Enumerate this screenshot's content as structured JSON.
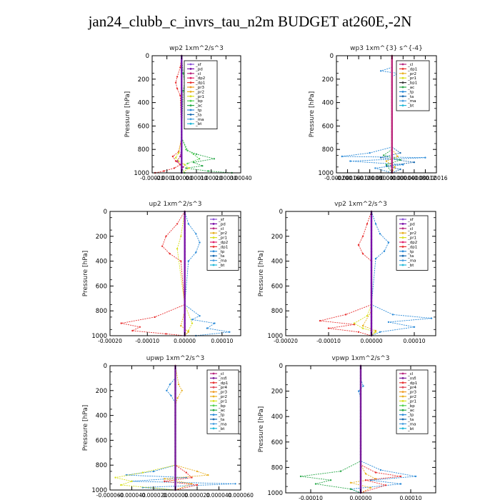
{
  "figure_title": "jan24_clubb_c_invrs_tau_n2m  BUDGET at260E,-2N",
  "colors": {
    "sf": "#8a4fd6",
    "pd": "#7a0ea8",
    "cl": "#b8257e",
    "dp2": "#e0206a",
    "dp1": "#e83030",
    "pr3": "#f09a20",
    "pr2": "#e8b020",
    "pr1": "#d8e020",
    "bp": "#50d050",
    "ac": "#2aa84a",
    "tp": "#2a8ad8",
    "ta": "#1a6ab0",
    "ma": "#4aa0e0",
    "bt": "#20b8d8",
    "mfl": "#7a1a9a",
    "pr4": "#e04a5a"
  },
  "chart_data": [
    {
      "type": "line",
      "title": "wp2   1xm^2/s^3",
      "ylabel": "Pressure [hPa]",
      "xlim": [
        -0.0002,
        0.0004
      ],
      "ylim": [
        1000,
        0
      ],
      "xticks": [
        -0.0002,
        -0.0001,
        0.0,
        0.0001,
        0.0002,
        0.0003,
        0.0004
      ],
      "xtick_labels": [
        "-0.00020",
        "-0.00010",
        "0.00000",
        "0.00010",
        "0.00020",
        "0.00030",
        "0.00040"
      ],
      "yticks": [
        0,
        200,
        400,
        600,
        800,
        1000
      ],
      "legend": [
        "_sf",
        "_pd",
        "_cl",
        "_dp2",
        "_dp1",
        "_pr3",
        "_pr2",
        "_pr1",
        "_bp",
        "_ac",
        "_tp",
        "_ta",
        "_ma",
        "_bt"
      ],
      "series": [
        {
          "name": "_dp1",
          "key": "dp1",
          "x": [
            0,
            -1e-05,
            -3e-05,
            -4e-05,
            -3e-05,
            -1e-05,
            0,
            -2e-05,
            -6e-05,
            -4e-05,
            -1e-05,
            -5e-05,
            -0.00012,
            -0.00018
          ],
          "y": [
            0,
            100,
            180,
            230,
            280,
            340,
            700,
            820,
            860,
            900,
            930,
            960,
            985,
            1000
          ]
        },
        {
          "name": "_ac",
          "key": "ac",
          "x": [
            0,
            1e-05,
            2e-05,
            1e-05,
            0,
            4e-05,
            0.0001,
            0.00022,
            8e-05,
            0.00014,
            3e-05,
            0.00018,
            0.00034
          ],
          "y": [
            0,
            150,
            230,
            300,
            700,
            810,
            840,
            880,
            910,
            940,
            960,
            985,
            1000
          ]
        },
        {
          "name": "_bp",
          "key": "bp",
          "x": [
            0,
            0,
            3e-05,
            8e-05,
            0.00012,
            4e-05,
            0,
            2e-05
          ],
          "y": [
            0,
            700,
            800,
            840,
            880,
            920,
            960,
            1000
          ]
        },
        {
          "name": "_pr1",
          "key": "pr1",
          "x": [
            0,
            0,
            -2e-05,
            -4e-05,
            -2e-05,
            2e-05,
            5e-05,
            0
          ],
          "y": [
            0,
            700,
            830,
            870,
            900,
            930,
            960,
            1000
          ]
        },
        {
          "name": "_cl",
          "key": "cl",
          "x": [
            0,
            0,
            -1e-05,
            -3e-05,
            1e-05,
            0
          ],
          "y": [
            0,
            780,
            860,
            900,
            950,
            1000
          ]
        },
        {
          "name": "_bt",
          "key": "bt",
          "x": [
            0,
            0
          ],
          "y": [
            0,
            1000
          ]
        },
        {
          "name": "_pd",
          "key": "pd",
          "x": [
            0,
            0
          ],
          "y": [
            0,
            1000
          ]
        }
      ]
    },
    {
      "type": "line",
      "title": "wp3   1xm^{3} s^{-4}",
      "ylabel": "Pressure [hPa]",
      "xlim": [
        -0.0002,
        0.00016
      ],
      "ylim": [
        1000,
        0
      ],
      "xticks": [
        -0.0002,
        -0.00016,
        -0.00012,
        -8e-05,
        -4e-05,
        0.0,
        4e-05,
        8e-05,
        0.00012,
        0.00016
      ],
      "xtick_labels": [
        "-0.00020",
        "-0.00016",
        "-0.00012",
        "-0.00008",
        "-0.00004",
        "0.00000",
        "0.00004",
        "0.00008",
        "0.00012",
        "0.00016"
      ],
      "yticks": [
        0,
        200,
        400,
        600,
        800,
        1000
      ],
      "legend": [
        "_cl",
        "_dp1",
        "_pr2",
        "_pr1",
        "_bp1",
        "_ac",
        "_tp",
        "_ta",
        "_ma",
        "_bt"
      ],
      "series": [
        {
          "name": "_tp",
          "key": "tp",
          "x": [
            0,
            0,
            -4e-05,
            2e-05,
            0,
            0,
            -8e-05,
            -0.00018,
            0.00012,
            -0.00015,
            4e-05,
            -6e-05,
            0
          ],
          "y": [
            0,
            100,
            130,
            150,
            180,
            780,
            830,
            860,
            870,
            900,
            930,
            960,
            1000
          ]
        },
        {
          "name": "_ta",
          "key": "ta",
          "x": [
            0,
            0,
            3e-05,
            -4e-05,
            8e-05,
            -2e-05,
            3e-05,
            0
          ],
          "y": [
            0,
            780,
            830,
            870,
            910,
            940,
            970,
            1000
          ]
        },
        {
          "name": "_ac",
          "key": "ac",
          "x": [
            0,
            0,
            -3e-05,
            3e-05,
            -2e-05,
            0
          ],
          "y": [
            0,
            800,
            850,
            890,
            930,
            1000
          ]
        },
        {
          "name": "_pr2",
          "key": "pr2",
          "x": [
            0,
            0,
            2e-05,
            -2e-05,
            1e-05,
            0
          ],
          "y": [
            0,
            800,
            860,
            900,
            950,
            1000
          ]
        },
        {
          "name": "_dp1",
          "key": "dp1",
          "x": [
            0,
            0
          ],
          "y": [
            0,
            1000
          ]
        },
        {
          "name": "_cl",
          "key": "cl",
          "x": [
            0,
            0
          ],
          "y": [
            0,
            1000
          ]
        }
      ]
    },
    {
      "type": "line",
      "title": "up2   1xm^2/s^3",
      "ylabel": "Pressure [hPa]",
      "xlim": [
        -0.0002,
        0.00015
      ],
      "ylim": [
        1000,
        0
      ],
      "xticks": [
        -0.0002,
        -0.0001,
        0.0,
        0.0001
      ],
      "xtick_labels": [
        "-0.00020",
        "-0.00010",
        "0.00000",
        "0.00010"
      ],
      "yticks": [
        0,
        200,
        400,
        600,
        800,
        1000
      ],
      "legend": [
        "_sf",
        "_pd",
        "_cl",
        "_pr2",
        "_pr1",
        "_dp2",
        "_dp1",
        "_tp",
        "_ta",
        "_ma",
        "_bt"
      ],
      "series": [
        {
          "name": "_dp1",
          "key": "dp1",
          "x": [
            0,
            -2e-05,
            -5e-05,
            -6e-05,
            -4e-05,
            -1e-05,
            0,
            -8e-05,
            -0.00017,
            -0.00012,
            -0.00014,
            -5e-05,
            0
          ],
          "y": [
            0,
            100,
            200,
            280,
            340,
            400,
            750,
            850,
            900,
            930,
            960,
            985,
            1000
          ]
        },
        {
          "name": "_tp",
          "key": "tp",
          "x": [
            0,
            1e-05,
            3e-05,
            4e-05,
            3e-05,
            1e-05,
            0,
            4e-05,
            2e-05,
            8e-05,
            6e-05,
            0.00012,
            3e-05
          ],
          "y": [
            0,
            100,
            180,
            250,
            330,
            400,
            750,
            840,
            870,
            900,
            940,
            970,
            1000
          ]
        },
        {
          "name": "_pr1",
          "key": "pr1",
          "x": [
            0,
            -1e-05,
            -2e-05,
            0,
            2e-05,
            1e-05,
            0
          ],
          "y": [
            0,
            200,
            300,
            750,
            900,
            960,
            1000
          ]
        },
        {
          "name": "_pr2",
          "key": "pr2",
          "x": [
            0,
            0,
            -1e-05,
            1e-05,
            0
          ],
          "y": [
            0,
            800,
            920,
            970,
            1000
          ]
        },
        {
          "name": "_bt",
          "key": "bt",
          "x": [
            0,
            0
          ],
          "y": [
            0,
            1000
          ]
        },
        {
          "name": "_cl",
          "key": "cl",
          "x": [
            0,
            0
          ],
          "y": [
            0,
            1000
          ]
        },
        {
          "name": "_pd",
          "key": "pd",
          "x": [
            0,
            0
          ],
          "y": [
            0,
            1000
          ]
        }
      ]
    },
    {
      "type": "line",
      "title": "vp2   1xm^2/s^3",
      "ylabel": "Pressure [hPa]",
      "xlim": [
        -0.0002,
        0.00015
      ],
      "ylim": [
        1000,
        0
      ],
      "xticks": [
        -0.0002,
        -0.0001,
        0.0,
        0.0001
      ],
      "xtick_labels": [
        "-0.00020",
        "-0.00010",
        "0.00000",
        "0.00010"
      ],
      "yticks": [
        0,
        200,
        400,
        600,
        800,
        1000
      ],
      "legend": [
        "_sf",
        "_pd",
        "_cl",
        "_pr2",
        "_pr1",
        "_dp2",
        "_dp1",
        "_tp",
        "_ta",
        "_ma",
        "_bt"
      ],
      "series": [
        {
          "name": "_dp1",
          "key": "dp1",
          "x": [
            0,
            -1e-05,
            -2e-05,
            -3e-05,
            -2e-05,
            0,
            0,
            -6e-05,
            -0.00012,
            -4e-05,
            -0.0001,
            -3e-05,
            0
          ],
          "y": [
            0,
            100,
            200,
            270,
            340,
            400,
            750,
            830,
            880,
            910,
            940,
            970,
            1000
          ]
        },
        {
          "name": "_tp",
          "key": "tp",
          "x": [
            0,
            1e-05,
            2e-05,
            4e-05,
            3e-05,
            1e-05,
            0,
            5e-05,
            0.00014,
            4e-05,
            0.0001,
            2e-05,
            0
          ],
          "y": [
            0,
            100,
            180,
            250,
            320,
            380,
            750,
            830,
            860,
            890,
            930,
            970,
            1000
          ]
        },
        {
          "name": "_pr1",
          "key": "pr1",
          "x": [
            0,
            0,
            -1e-05,
            -4e-05,
            -2e-05,
            1e-05,
            0
          ],
          "y": [
            0,
            750,
            840,
            900,
            940,
            970,
            1000
          ]
        },
        {
          "name": "_pr2",
          "key": "pr2",
          "x": [
            0,
            0,
            -2e-05,
            1e-05,
            0
          ],
          "y": [
            0,
            800,
            920,
            960,
            1000
          ]
        },
        {
          "name": "_bt",
          "key": "bt",
          "x": [
            0,
            0
          ],
          "y": [
            0,
            1000
          ]
        },
        {
          "name": "_cl",
          "key": "cl",
          "x": [
            0,
            0
          ],
          "y": [
            0,
            1000
          ]
        },
        {
          "name": "_pd",
          "key": "pd",
          "x": [
            0,
            0
          ],
          "y": [
            0,
            1000
          ]
        }
      ]
    },
    {
      "type": "line",
      "title": "upwp   1xm^2/s^3",
      "ylabel": "Pressure [hPa]",
      "xlim": [
        -6e-05,
        6e-05
      ],
      "ylim": [
        1000,
        0
      ],
      "xticks": [
        -6e-05,
        -4e-05,
        -2e-05,
        0.0,
        2e-05,
        4e-05,
        6e-05
      ],
      "xtick_labels": [
        "-0.000060",
        "-0.000040",
        "-0.000020",
        "0.000000",
        "0.000020",
        "0.000040",
        "0.000060"
      ],
      "yticks": [
        0,
        200,
        400,
        600,
        800,
        1000
      ],
      "legend": [
        "_cl",
        "_mfl",
        "_dp1",
        "_pr4",
        "_pr3",
        "_pr2",
        "_pr1",
        "_bp",
        "_ac",
        "_tp",
        "_ta",
        "_ma",
        "_bt"
      ],
      "series": [
        {
          "name": "_tp",
          "key": "tp",
          "x": [
            0,
            0,
            -5e-06,
            -8e-06,
            -4e-06,
            0,
            0,
            -2e-05,
            -4.5e-05,
            1e-05,
            -4e-05,
            5.5e-05,
            -3e-05,
            0
          ],
          "y": [
            0,
            100,
            150,
            200,
            240,
            300,
            800,
            850,
            880,
            900,
            930,
            950,
            980,
            1000
          ]
        },
        {
          "name": "_pr2",
          "key": "pr2",
          "x": [
            0,
            3e-06,
            6e-06,
            2e-06,
            0,
            0,
            2e-05,
            3e-05,
            -1e-05,
            1.5e-05,
            0
          ],
          "y": [
            0,
            150,
            200,
            260,
            320,
            800,
            850,
            880,
            910,
            950,
            1000
          ]
        },
        {
          "name": "_pr1",
          "key": "pr1",
          "x": [
            0,
            0,
            -3e-05,
            -5.5e-05,
            -4e-05,
            -5e-05,
            0
          ],
          "y": [
            0,
            800,
            860,
            900,
            930,
            960,
            1000
          ]
        },
        {
          "name": "_dp1",
          "key": "dp1",
          "x": [
            0,
            0,
            1e-05,
            1.5e-05,
            -1e-05,
            2e-05,
            0
          ],
          "y": [
            0,
            800,
            860,
            900,
            930,
            960,
            1000
          ]
        },
        {
          "name": "_bt",
          "key": "bt",
          "x": [
            0,
            0
          ],
          "y": [
            0,
            1000
          ]
        },
        {
          "name": "_cl",
          "key": "cl",
          "x": [
            0,
            0
          ],
          "y": [
            0,
            1000
          ]
        },
        {
          "name": "_mfl",
          "key": "mfl",
          "x": [
            0,
            0
          ],
          "y": [
            0,
            1000
          ]
        }
      ]
    },
    {
      "type": "line",
      "title": "vpwp   1xm^2/s^3",
      "ylabel": "Pressure [hPa]",
      "xlim": [
        -0.00015,
        0.00015
      ],
      "ylim": [
        1000,
        0
      ],
      "xticks": [
        -0.0001,
        0.0,
        0.0001
      ],
      "xtick_labels": [
        "-0.00010",
        "0.00000",
        "0.00010"
      ],
      "yticks": [
        0,
        200,
        400,
        600,
        800,
        1000
      ],
      "legend": [
        "_cl",
        "_mfl",
        "_dp1",
        "_pr4",
        "_pr3",
        "_pr2",
        "_pr1",
        "_bp",
        "_ac",
        "_tp",
        "_ta",
        "_ma",
        "_bt"
      ],
      "series": [
        {
          "name": "_tp",
          "key": "tp",
          "x": [
            0,
            0,
            5e-06,
            -4e-06,
            0,
            0,
            4e-05,
            0.00011,
            2e-05,
            8e-05,
            -2e-05,
            0
          ],
          "y": [
            0,
            100,
            160,
            200,
            260,
            750,
            820,
            870,
            900,
            930,
            970,
            1000
          ]
        },
        {
          "name": "_ac",
          "key": "ac",
          "x": [
            0,
            0,
            -4e-05,
            -0.00012,
            -6e-05,
            -9e-05,
            -2e-05,
            0
          ],
          "y": [
            0,
            750,
            830,
            870,
            900,
            930,
            970,
            1000
          ]
        },
        {
          "name": "_pr2",
          "key": "pr2",
          "x": [
            0,
            0,
            1e-05,
            3e-05,
            -2e-05,
            2e-05,
            0
          ],
          "y": [
            0,
            780,
            850,
            890,
            920,
            960,
            1000
          ]
        },
        {
          "name": "_dp1",
          "key": "dp1",
          "x": [
            0,
            0,
            3e-05,
            8e-05,
            1e-05,
            5e-05,
            0
          ],
          "y": [
            0,
            780,
            840,
            870,
            900,
            940,
            1000
          ]
        },
        {
          "name": "_bt",
          "key": "bt",
          "x": [
            0,
            0
          ],
          "y": [
            0,
            1000
          ]
        },
        {
          "name": "_cl",
          "key": "cl",
          "x": [
            0,
            0
          ],
          "y": [
            0,
            1000
          ]
        },
        {
          "name": "_mfl",
          "key": "mfl",
          "x": [
            0,
            0
          ],
          "y": [
            0,
            1000
          ]
        }
      ]
    }
  ]
}
